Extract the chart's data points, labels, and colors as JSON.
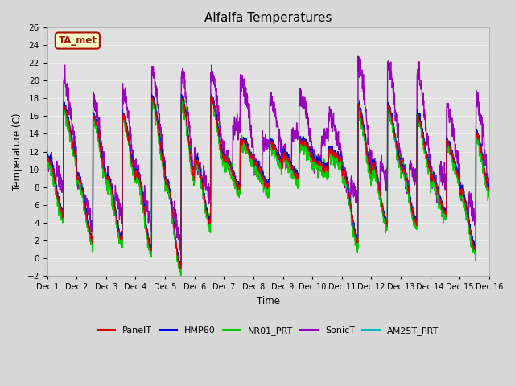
{
  "title": "Alfalfa Temperatures",
  "xlabel": "Time",
  "ylabel": "Temperature (C)",
  "ylim": [
    -2,
    26
  ],
  "yticks": [
    -2,
    0,
    2,
    4,
    6,
    8,
    10,
    12,
    14,
    16,
    18,
    20,
    22,
    24,
    26
  ],
  "xtick_labels": [
    "Dec 1",
    "Dec 2",
    "Dec 3",
    "Dec 4",
    "Dec 5",
    "Dec 6",
    "Dec 7",
    "Dec 8",
    "Dec 9",
    "Dec 10",
    "Dec 11",
    "Dec 12",
    "Dec 13",
    "Dec 14",
    "Dec 15",
    "Dec 16"
  ],
  "series_colors": {
    "PanelT": "#dd0000",
    "HMP60": "#0000dd",
    "NR01_PRT": "#00cc00",
    "SonicT": "#9900bb",
    "AM25T_PRT": "#00bbbb"
  },
  "series_linewidths": {
    "PanelT": 0.8,
    "HMP60": 0.8,
    "NR01_PRT": 1.0,
    "SonicT": 1.0,
    "AM25T_PRT": 0.8
  },
  "fig_bg_color": "#d8d8d8",
  "plot_bg_color": "#e0e0e0",
  "grid_color": "#f0f0f0",
  "annotation_text": "TA_met",
  "annotation_fg": "#aa1100",
  "annotation_bg": "#ffffcc",
  "annotation_border": "#aa1100",
  "days": 15,
  "n_points": 2160,
  "day_mins": [
    5,
    2,
    2,
    1,
    -1,
    4,
    8,
    8,
    9,
    10,
    2,
    4,
    4,
    5,
    1
  ],
  "day_maxs": [
    17,
    16,
    16,
    18,
    18,
    18,
    14,
    13,
    14,
    12,
    17,
    17,
    16,
    13,
    14
  ],
  "sonic_offsets": [
    3,
    2,
    3,
    3,
    3,
    3,
    7,
    5,
    5,
    4,
    5,
    5,
    5,
    4,
    4
  ],
  "noise_seed": 42
}
